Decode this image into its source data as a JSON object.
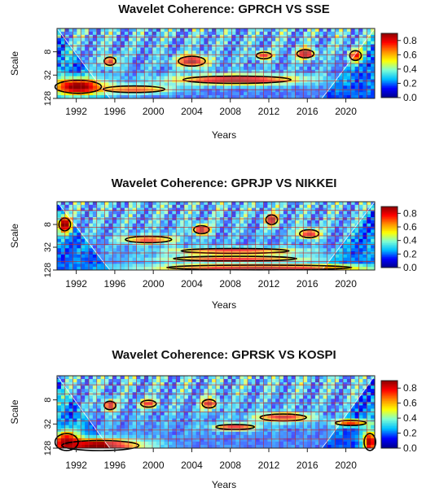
{
  "chart_data": [
    {
      "type": "heatmap",
      "title": "Wavelet Coherence: GPRCH VS SSE",
      "xlabel": "Years",
      "ylabel": "Scale",
      "x_ticks": [
        "1992",
        "1996",
        "2000",
        "2004",
        "2008",
        "2012",
        "2016",
        "2020"
      ],
      "y_ticks": [
        "8",
        "32",
        "128"
      ],
      "colorbar_ticks": [
        "0.8",
        "0.6",
        "0.4",
        "0.2",
        "0.0"
      ],
      "colorbar_range": [
        0.0,
        0.9
      ],
      "x_range": [
        1990,
        2023
      ],
      "scale_range": [
        2,
        128
      ],
      "grid": true,
      "colormap": [
        "#00008b",
        "#0000ff",
        "#00bfff",
        "#7fffd4",
        "#ffff00",
        "#ff8c00",
        "#ff0000",
        "#8b0000"
      ],
      "grid_color": "#cc2222",
      "hotspots": [
        {
          "x": 1992.2,
          "scale": 64,
          "width": 6,
          "height_oct": 0.8,
          "value": 0.95
        },
        {
          "x": 1998.0,
          "scale": 74,
          "width": 8,
          "height_oct": 0.4,
          "value": 0.75
        },
        {
          "x": 2008.7,
          "scale": 42,
          "width": 14,
          "height_oct": 0.45,
          "value": 0.95
        },
        {
          "x": 2004.0,
          "scale": 14,
          "width": 3.5,
          "height_oct": 0.6,
          "value": 0.92
        },
        {
          "x": 2015.8,
          "scale": 9,
          "width": 2.2,
          "height_oct": 0.5,
          "value": 0.95
        },
        {
          "x": 1995.5,
          "scale": 14,
          "width": 1.5,
          "height_oct": 0.5,
          "value": 0.85
        },
        {
          "x": 2021.0,
          "scale": 10,
          "width": 1.5,
          "height_oct": 0.6,
          "value": 0.8
        },
        {
          "x": 2011.5,
          "scale": 10,
          "width": 2.0,
          "height_oct": 0.4,
          "value": 0.8
        }
      ]
    },
    {
      "type": "heatmap",
      "title": "Wavelet Coherence: GPRJP VS NIKKEI",
      "xlabel": "Years",
      "ylabel": "Scale",
      "x_ticks": [
        "1992",
        "1996",
        "2000",
        "2004",
        "2008",
        "2012",
        "2016",
        "2020"
      ],
      "y_ticks": [
        "8",
        "32",
        "128"
      ],
      "colorbar_ticks": [
        "0.8",
        "0.6",
        "0.4",
        "0.2",
        "0.0"
      ],
      "colorbar_range": [
        0.0,
        0.9
      ],
      "x_range": [
        1990,
        2023
      ],
      "scale_range": [
        2,
        128
      ],
      "grid": true,
      "colormap": [
        "#00008b",
        "#0000ff",
        "#00bfff",
        "#7fffd4",
        "#ffff00",
        "#ff8c00",
        "#ff0000",
        "#8b0000"
      ],
      "grid_color": "#cc2222",
      "hotspots": [
        {
          "x": 2011.0,
          "scale": 110,
          "width": 24,
          "height_oct": 0.3,
          "value": 0.95
        },
        {
          "x": 2008.5,
          "scale": 40,
          "width": 14,
          "height_oct": 0.3,
          "value": 0.85
        },
        {
          "x": 2008.5,
          "scale": 64,
          "width": 16,
          "height_oct": 0.3,
          "value": 0.8
        },
        {
          "x": 1990.8,
          "scale": 8,
          "width": 1.5,
          "height_oct": 0.8,
          "value": 0.95
        },
        {
          "x": 2005.0,
          "scale": 11,
          "width": 2.0,
          "height_oct": 0.5,
          "value": 0.92
        },
        {
          "x": 2012.3,
          "scale": 6,
          "width": 1.5,
          "height_oct": 0.6,
          "value": 0.95
        },
        {
          "x": 2016.2,
          "scale": 14,
          "width": 2.5,
          "height_oct": 0.5,
          "value": 0.85
        },
        {
          "x": 1999.5,
          "scale": 20,
          "width": 6,
          "height_oct": 0.4,
          "value": 0.78
        }
      ]
    },
    {
      "type": "heatmap",
      "title": "Wavelet Coherence: GPRSK VS KOSPI",
      "xlabel": "Years",
      "ylabel": "Scale",
      "x_ticks": [
        "1992",
        "1996",
        "2000",
        "2004",
        "2008",
        "2012",
        "2016",
        "2020"
      ],
      "y_ticks": [
        "8",
        "32",
        "128"
      ],
      "colorbar_ticks": [
        "0.8",
        "0.6",
        "0.4",
        "0.2",
        "0.0"
      ],
      "colorbar_range": [
        0.0,
        0.9
      ],
      "x_range": [
        1990,
        2023
      ],
      "scale_range": [
        2,
        128
      ],
      "grid": true,
      "colormap": [
        "#00008b",
        "#0000ff",
        "#00bfff",
        "#7fffd4",
        "#ffff00",
        "#ff8c00",
        "#ff0000",
        "#8b0000"
      ],
      "grid_color": "#cc2222",
      "hotspots": [
        {
          "x": 1994.5,
          "scale": 110,
          "width": 10,
          "height_oct": 0.6,
          "value": 0.95
        },
        {
          "x": 1991.0,
          "scale": 90,
          "width": 3,
          "height_oct": 1.0,
          "value": 0.9
        },
        {
          "x": 2013.5,
          "scale": 22,
          "width": 6,
          "height_oct": 0.4,
          "value": 0.85
        },
        {
          "x": 2008.5,
          "scale": 38,
          "width": 5,
          "height_oct": 0.3,
          "value": 0.8
        },
        {
          "x": 2020.5,
          "scale": 30,
          "width": 4,
          "height_oct": 0.3,
          "value": 0.75
        },
        {
          "x": 1995.5,
          "scale": 11,
          "width": 1.5,
          "height_oct": 0.5,
          "value": 0.9
        },
        {
          "x": 2005.8,
          "scale": 10,
          "width": 1.8,
          "height_oct": 0.5,
          "value": 0.88
        },
        {
          "x": 1999.5,
          "scale": 10,
          "width": 2.0,
          "height_oct": 0.4,
          "value": 0.8
        },
        {
          "x": 2022.5,
          "scale": 90,
          "width": 1.5,
          "height_oct": 1.0,
          "value": 0.9
        }
      ]
    }
  ]
}
